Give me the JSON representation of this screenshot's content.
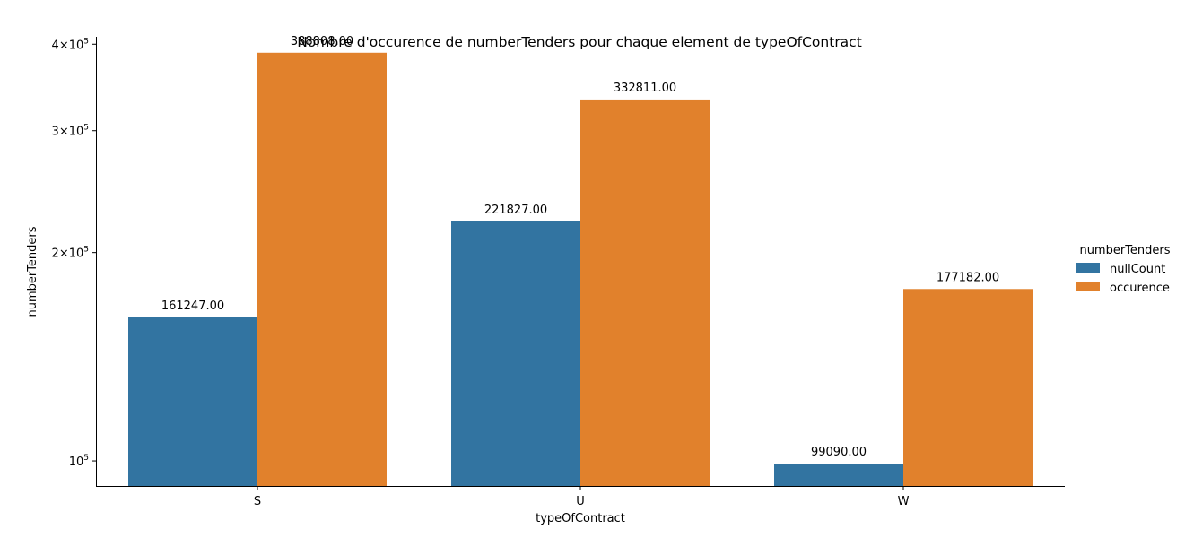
{
  "chart_data": {
    "type": "bar",
    "title": "Nombre d'occurence de numberTenders pour chaque element de typeOfContract",
    "xlabel": "typeOfContract",
    "ylabel": "numberTenders",
    "yscale": "log",
    "ylim": [
      92000,
      410000
    ],
    "yticks": [
      {
        "value": 100000,
        "base": "10",
        "exp": "5",
        "mult": ""
      },
      {
        "value": 200000,
        "base": "10",
        "exp": "5",
        "mult": "2×"
      },
      {
        "value": 300000,
        "base": "10",
        "exp": "5",
        "mult": "3×"
      },
      {
        "value": 400000,
        "base": "10",
        "exp": "5",
        "mult": "4×"
      }
    ],
    "categories": [
      "S",
      "U",
      "W"
    ],
    "series": [
      {
        "name": "nullCount",
        "color": "#3274a1",
        "values": [
          161247,
          221827,
          99090
        ],
        "labels": [
          "161247.00",
          "221827.00",
          "99090.00"
        ]
      },
      {
        "name": "occurence",
        "color": "#e1812c",
        "values": [
          388808,
          332811,
          177182
        ],
        "labels": [
          "388808.00",
          "332811.00",
          "177182.00"
        ]
      }
    ],
    "legend": {
      "title": "numberTenders",
      "position": "right"
    },
    "grid": false
  }
}
